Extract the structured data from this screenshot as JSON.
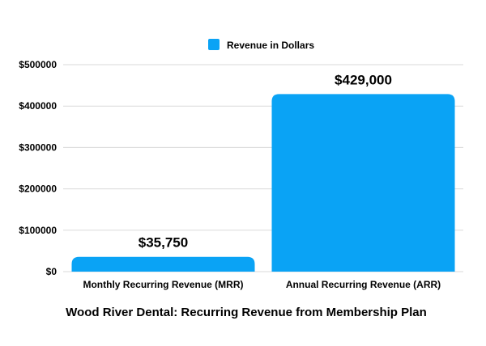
{
  "chart_data": {
    "type": "bar",
    "title": "Wood River Dental: Recurring Revenue from Membership Plan",
    "categories": [
      "Monthly Recurring Revenue (MRR)",
      "Annual Recurring Revenue (ARR)"
    ],
    "series": [
      {
        "name": "Revenue in Dollars",
        "values": [
          35750,
          429000
        ],
        "data_labels": [
          "$35,750",
          "$429,000"
        ]
      }
    ],
    "ylim": [
      0,
      500000
    ],
    "yticks": [
      0,
      100000,
      200000,
      300000,
      400000,
      500000
    ],
    "ytick_labels": [
      "$0",
      "$100000",
      "$200000",
      "$300000",
      "$400000",
      "$500000"
    ],
    "grid": true,
    "legend_position": "top-center",
    "colors": {
      "bar": "#0aa3f5",
      "grid": "#d9d9d9"
    }
  }
}
